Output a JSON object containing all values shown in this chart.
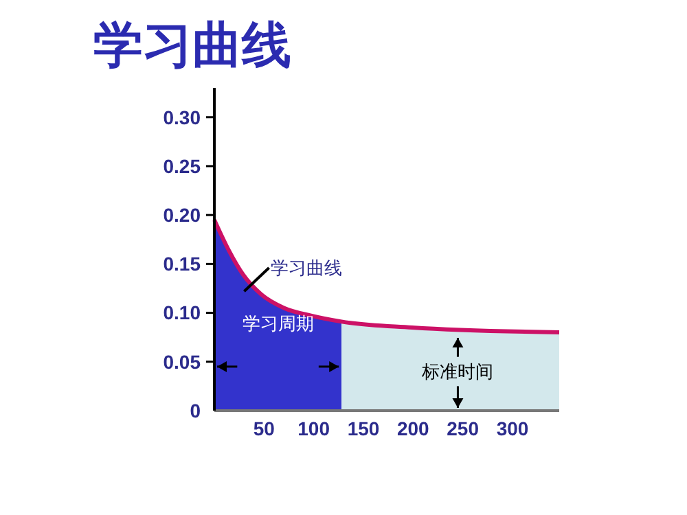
{
  "chart_data": {
    "type": "area",
    "title": "学习曲线",
    "xlim": [
      0,
      347
    ],
    "xticks": [
      50,
      100,
      150,
      200,
      250,
      300
    ],
    "ylim": [
      0,
      0.33
    ],
    "yticks": [
      0,
      0.05,
      {
        "value": 0.1,
        "label": "0.10"
      },
      0.15,
      {
        "value": 0.2,
        "label": "0.20"
      },
      0.25,
      {
        "value": 0.3,
        "label": "0.30"
      }
    ],
    "series": [
      {
        "color": "#3333cc",
        "x": [
          0,
          15,
          29,
          47,
          70,
          98,
          128
        ],
        "values": [
          0.195,
          0.163,
          0.139,
          0.119,
          0.105,
          0.097,
          0.091
        ]
      },
      {
        "color": "#d3e8ec",
        "x": [
          128,
          199,
          347
        ],
        "values": [
          0.091,
          0.085,
          0.08
        ]
      },
      {
        "type": "line",
        "color": "#cc1166",
        "x": [
          0,
          15,
          29,
          47,
          70,
          98,
          128,
          199,
          347
        ],
        "values": [
          0.195,
          0.163,
          0.139,
          0.119,
          0.105,
          0.097,
          0.091,
          0.085,
          0.08
        ]
      }
    ],
    "annotations": [
      "学习曲线",
      "学习周期",
      "标准时间"
    ],
    "grid": false,
    "line_style": "solid"
  }
}
